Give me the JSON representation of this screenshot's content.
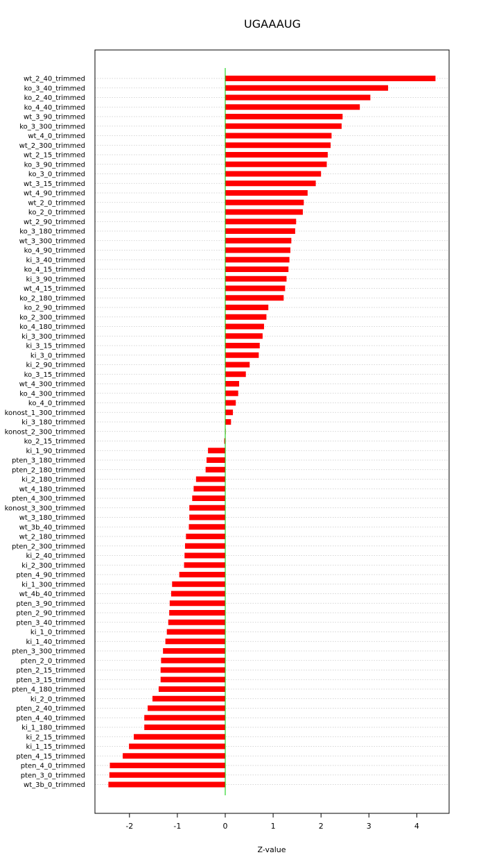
{
  "chart_data": {
    "type": "bar",
    "orientation": "horizontal",
    "title": "UGAAAUG",
    "xlabel": "Z-value",
    "ylabel": "",
    "xlim": [
      -2.72,
      4.7
    ],
    "xticks": [
      -2,
      -1,
      0,
      1,
      2,
      3,
      4
    ],
    "grid": "horizontal dotted",
    "colors": {
      "bar": "#ff0000",
      "zero_line": "#00cc00",
      "grid": "#c8c8c8",
      "frame": "#000000"
    },
    "categories": [
      "wt_2_40_trimmed",
      "ko_3_40_trimmed",
      "ko_2_40_trimmed",
      "ko_4_40_trimmed",
      "wt_3_90_trimmed",
      "ko_3_300_trimmed",
      "wt_4_0_trimmed",
      "wt_2_300_trimmed",
      "wt_2_15_trimmed",
      "ko_3_90_trimmed",
      "ko_3_0_trimmed",
      "wt_3_15_trimmed",
      "wt_4_90_trimmed",
      "wt_2_0_trimmed",
      "ko_2_0_trimmed",
      "wt_2_90_trimmed",
      "ko_3_180_trimmed",
      "wt_3_300_trimmed",
      "ko_4_90_trimmed",
      "ki_3_40_trimmed",
      "ko_4_15_trimmed",
      "ki_3_90_trimmed",
      "wt_4_15_trimmed",
      "ko_2_180_trimmed",
      "ko_2_90_trimmed",
      "ko_2_300_trimmed",
      "ko_4_180_trimmed",
      "ki_3_300_trimmed",
      "ki_3_15_trimmed",
      "ki_3_0_trimmed",
      "ki_2_90_trimmed",
      "ko_3_15_trimmed",
      "wt_4_300_trimmed",
      "ko_4_300_trimmed",
      "ko_4_0_trimmed",
      "konost_1_300_trimmed",
      "ki_3_180_trimmed",
      "konost_2_300_trimmed",
      "ko_2_15_trimmed",
      "ki_1_90_trimmed",
      "pten_3_180_trimmed",
      "pten_2_180_trimmed",
      "ki_2_180_trimmed",
      "wt_4_180_trimmed",
      "pten_4_300_trimmed",
      "konost_3_300_trimmed",
      "wt_3_180_trimmed",
      "wt_3b_40_trimmed",
      "wt_2_180_trimmed",
      "pten_2_300_trimmed",
      "ki_2_40_trimmed",
      "ki_2_300_trimmed",
      "pten_4_90_trimmed",
      "ki_1_300_trimmed",
      "wt_4b_40_trimmed",
      "pten_3_90_trimmed",
      "pten_2_90_trimmed",
      "pten_3_40_trimmed",
      "ki_1_0_trimmed",
      "ki_1_40_trimmed",
      "pten_3_300_trimmed",
      "pten_2_0_trimmed",
      "pten_2_15_trimmed",
      "pten_3_15_trimmed",
      "pten_4_180_trimmed",
      "ki_2_0_trimmed",
      "pten_2_40_trimmed",
      "pten_4_40_trimmed",
      "ki_1_180_trimmed",
      "ki_2_15_trimmed",
      "ki_1_15_trimmed",
      "pten_4_15_trimmed",
      "pten_4_0_trimmed",
      "pten_3_0_trimmed",
      "wt_3b_0_trimmed"
    ],
    "values": [
      4.39,
      3.4,
      3.03,
      2.81,
      2.45,
      2.43,
      2.22,
      2.2,
      2.14,
      2.12,
      2.0,
      1.89,
      1.72,
      1.64,
      1.62,
      1.48,
      1.46,
      1.38,
      1.36,
      1.34,
      1.32,
      1.28,
      1.25,
      1.22,
      0.9,
      0.86,
      0.81,
      0.78,
      0.72,
      0.7,
      0.51,
      0.43,
      0.29,
      0.27,
      0.22,
      0.16,
      0.12,
      0.01,
      -0.02,
      -0.36,
      -0.39,
      -0.41,
      -0.61,
      -0.66,
      -0.69,
      -0.75,
      -0.75,
      -0.76,
      -0.82,
      -0.84,
      -0.85,
      -0.86,
      -0.96,
      -1.11,
      -1.13,
      -1.16,
      -1.17,
      -1.19,
      -1.22,
      -1.25,
      -1.3,
      -1.34,
      -1.35,
      -1.35,
      -1.39,
      -1.52,
      -1.62,
      -1.69,
      -1.69,
      -1.91,
      -2.01,
      -2.14,
      -2.41,
      -2.42,
      -2.44
    ]
  }
}
